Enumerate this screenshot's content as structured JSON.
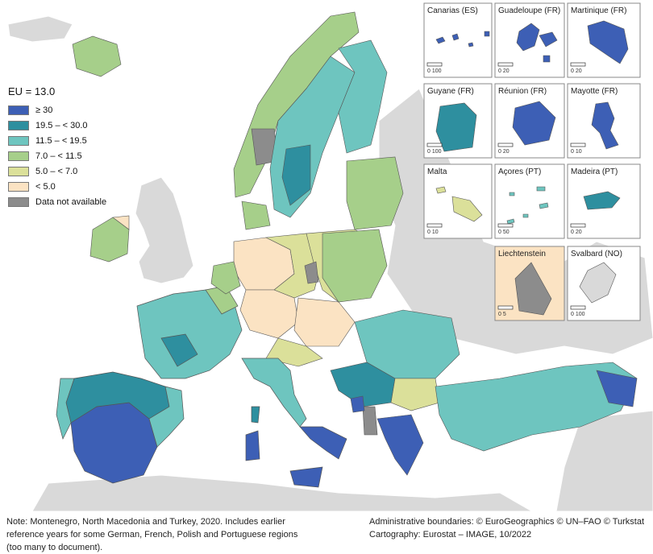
{
  "legend": {
    "title": "EU = 13.0",
    "classes": [
      {
        "label": "≥ 30",
        "color": "#3d5fb5"
      },
      {
        "label": "19.5 – < 30.0",
        "color": "#2e8f9f"
      },
      {
        "label": "11.5 – < 19.5",
        "color": "#6ec5bf"
      },
      {
        "label": "7.0 – < 11.5",
        "color": "#a6cf8a"
      },
      {
        "label": "5.0 – < 7.0",
        "color": "#dbe09a"
      },
      {
        "label": "< 5.0",
        "color": "#fbe3c3"
      },
      {
        "label": "Data not available",
        "color": "#8c8c8c"
      }
    ]
  },
  "insets": [
    {
      "name": "Canarias (ES)",
      "scale_label": "0   100"
    },
    {
      "name": "Guadeloupe (FR)",
      "scale_label": "0   20"
    },
    {
      "name": "Martinique (FR)",
      "scale_label": "0   20"
    },
    {
      "name": "Guyane (FR)",
      "scale_label": "0   100"
    },
    {
      "name": "Réunion (FR)",
      "scale_label": "0   20"
    },
    {
      "name": "Mayotte (FR)",
      "scale_label": "0   10"
    },
    {
      "name": "Malta",
      "scale_label": "0   10"
    },
    {
      "name": "Açores (PT)",
      "scale_label": "0   50"
    },
    {
      "name": "Madeira (PT)",
      "scale_label": "0   20"
    },
    {
      "name": "Liechtenstein",
      "scale_label": "0   5"
    },
    {
      "name": "Svalbard (NO)",
      "scale_label": "0   100"
    }
  ],
  "footer": {
    "note": "Note: Montenegro, North Macedonia and Turkey, 2020. Includes earlier reference years for some German, French, Polish and Portuguese regions (too many to document).",
    "boundaries": "Administrative boundaries: © EuroGeographics © UN–FAO © Turkstat",
    "cartography": "Cartography: Eurostat – IMAGE, 10/2022"
  },
  "colors": {
    "sea": "#ffffff",
    "land_outside": "#d9d9d9",
    "border": "#555555",
    "inset_bg": "#ffffff",
    "liechtenstein_bg": "#fbe3c3"
  }
}
